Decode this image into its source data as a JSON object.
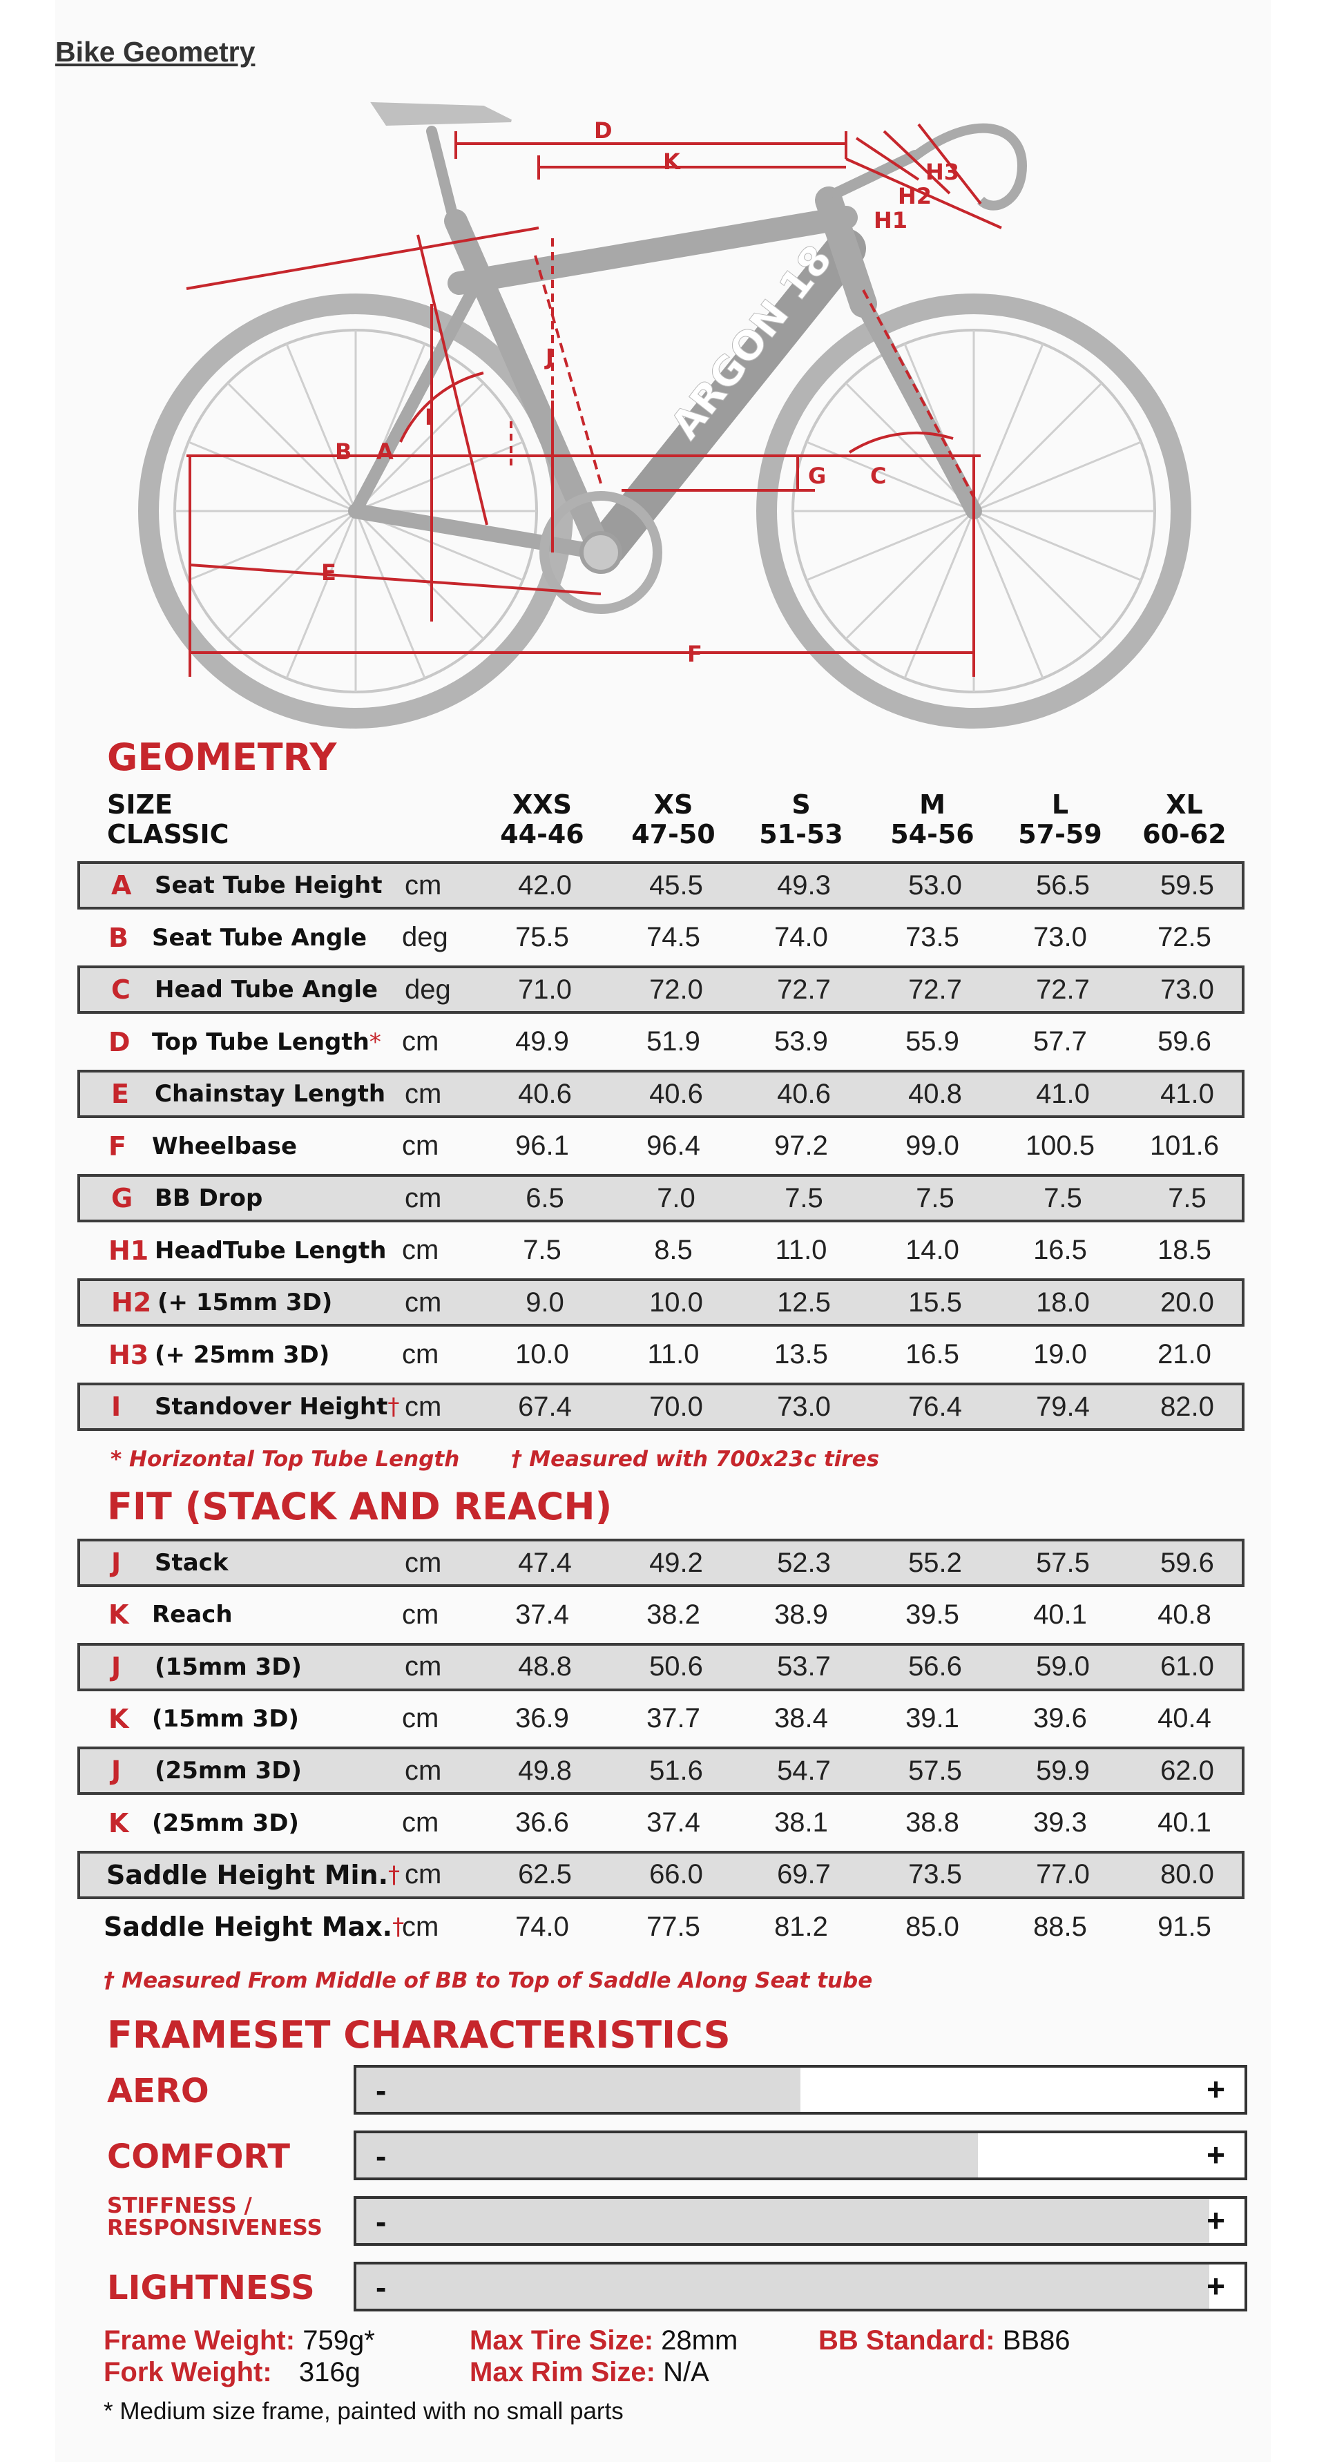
{
  "page_title": "Bike Geometry",
  "diagram": {
    "labels": [
      "D",
      "K",
      "H3",
      "H2",
      "H1",
      "J",
      "I",
      "B",
      "A",
      "C",
      "G",
      "E",
      "F"
    ],
    "downtube_text": "ARGON 18"
  },
  "geometry": {
    "title": "GEOMETRY",
    "size_label": "SIZE",
    "classic_label": "CLASSIC",
    "sizes": [
      "XXS",
      "XS",
      "S",
      "M",
      "L",
      "XL"
    ],
    "ranges": [
      "44-46",
      "47-50",
      "51-53",
      "54-56",
      "57-59",
      "60-62"
    ],
    "rows": [
      {
        "letter": "A",
        "label": "Seat Tube Height",
        "mark": "",
        "unit": "cm",
        "values": [
          "42.0",
          "45.5",
          "49.3",
          "53.0",
          "56.5",
          "59.5"
        ]
      },
      {
        "letter": "B",
        "label": "Seat Tube Angle",
        "mark": "",
        "unit": "deg",
        "values": [
          "75.5",
          "74.5",
          "74.0",
          "73.5",
          "73.0",
          "72.5"
        ]
      },
      {
        "letter": "C",
        "label": "Head Tube Angle",
        "mark": "",
        "unit": "deg",
        "values": [
          "71.0",
          "72.0",
          "72.7",
          "72.7",
          "72.7",
          "73.0"
        ]
      },
      {
        "letter": "D",
        "label": "Top Tube Length",
        "mark": "*",
        "unit": "cm",
        "values": [
          "49.9",
          "51.9",
          "53.9",
          "55.9",
          "57.7",
          "59.6"
        ]
      },
      {
        "letter": "E",
        "label": "Chainstay Length",
        "mark": "",
        "unit": "cm",
        "values": [
          "40.6",
          "40.6",
          "40.6",
          "40.8",
          "41.0",
          "41.0"
        ]
      },
      {
        "letter": "F",
        "label": "Wheelbase",
        "mark": "",
        "unit": "cm",
        "values": [
          "96.1",
          "96.4",
          "97.2",
          "99.0",
          "100.5",
          "101.6"
        ]
      },
      {
        "letter": "G",
        "label": "BB Drop",
        "mark": "",
        "unit": "cm",
        "values": [
          "6.5",
          "7.0",
          "7.5",
          "7.5",
          "7.5",
          "7.5"
        ]
      },
      {
        "letter": "H1",
        "label": "HeadTube Length",
        "mark": "",
        "unit": "cm",
        "values": [
          "7.5",
          "8.5",
          "11.0",
          "14.0",
          "16.5",
          "18.5"
        ]
      },
      {
        "letter": "H2",
        "label": "(+ 15mm 3D)",
        "mark": "",
        "unit": "cm",
        "values": [
          "9.0",
          "10.0",
          "12.5",
          "15.5",
          "18.0",
          "20.0"
        ]
      },
      {
        "letter": "H3",
        "label": "(+ 25mm 3D)",
        "mark": "",
        "unit": "cm",
        "values": [
          "10.0",
          "11.0",
          "13.5",
          "16.5",
          "19.0",
          "21.0"
        ]
      },
      {
        "letter": "I",
        "label": "Standover Height",
        "mark": "†",
        "unit": "cm",
        "values": [
          "67.4",
          "70.0",
          "73.0",
          "76.4",
          "79.4",
          "82.0"
        ]
      }
    ],
    "note_1": "* Horizontal Top Tube Length",
    "note_2": "† Measured with 700x23c tires"
  },
  "fit": {
    "title": "FIT (STACK AND REACH)",
    "rows": [
      {
        "letter": "J",
        "label": "Stack",
        "mark": "",
        "unit": "cm",
        "values": [
          "47.4",
          "49.2",
          "52.3",
          "55.2",
          "57.5",
          "59.6"
        ]
      },
      {
        "letter": "K",
        "label": "Reach",
        "mark": "",
        "unit": "cm",
        "values": [
          "37.4",
          "38.2",
          "38.9",
          "39.5",
          "40.1",
          "40.8"
        ]
      },
      {
        "letter": "J",
        "label": "(15mm 3D)",
        "mark": "",
        "unit": "cm",
        "values": [
          "48.8",
          "50.6",
          "53.7",
          "56.6",
          "59.0",
          "61.0"
        ]
      },
      {
        "letter": "K",
        "label": "(15mm 3D)",
        "mark": "",
        "unit": "cm",
        "values": [
          "36.9",
          "37.7",
          "38.4",
          "39.1",
          "39.6",
          "40.4"
        ]
      },
      {
        "letter": "J",
        "label": "(25mm 3D)",
        "mark": "",
        "unit": "cm",
        "values": [
          "49.8",
          "51.6",
          "54.7",
          "57.5",
          "59.9",
          "62.0"
        ]
      },
      {
        "letter": "K",
        "label": "(25mm 3D)",
        "mark": "",
        "unit": "cm",
        "values": [
          "36.6",
          "37.4",
          "38.1",
          "38.8",
          "39.3",
          "40.1"
        ]
      },
      {
        "letter": "",
        "label": "Saddle Height Min.",
        "mark": "†",
        "unit": "cm",
        "values": [
          "62.5",
          "66.0",
          "69.7",
          "73.5",
          "77.0",
          "80.0"
        ]
      },
      {
        "letter": "",
        "label": "Saddle Height Max.",
        "mark": "†",
        "unit": "cm",
        "values": [
          "74.0",
          "77.5",
          "81.2",
          "85.0",
          "88.5",
          "91.5"
        ]
      }
    ],
    "note": "† Measured From Middle of BB to Top of Saddle Along Seat tube"
  },
  "frameset": {
    "title": "FRAMESET CHARACTERISTICS",
    "minus": "-",
    "plus": "+",
    "bars": [
      {
        "label": "AERO",
        "level": 0.5
      },
      {
        "label": "COMFORT",
        "level": 0.7
      },
      {
        "label": "STIFFNESS / RESPONSIVENESS",
        "level": 0.96
      },
      {
        "label": "LIGHTNESS",
        "level": 0.96
      }
    ]
  },
  "specs": {
    "frame_weight_label": "Frame Weight:",
    "frame_weight_value": "759g*",
    "fork_weight_label": "Fork Weight:",
    "fork_weight_value": "316g",
    "max_tire_label": "Max Tire Size:",
    "max_tire_value": "28mm",
    "max_rim_label": "Max Rim Size:",
    "max_rim_value": "N/A",
    "bb_label": "BB Standard:",
    "bb_value": "BB86",
    "footnote": "* Medium size frame, painted with no small parts"
  }
}
